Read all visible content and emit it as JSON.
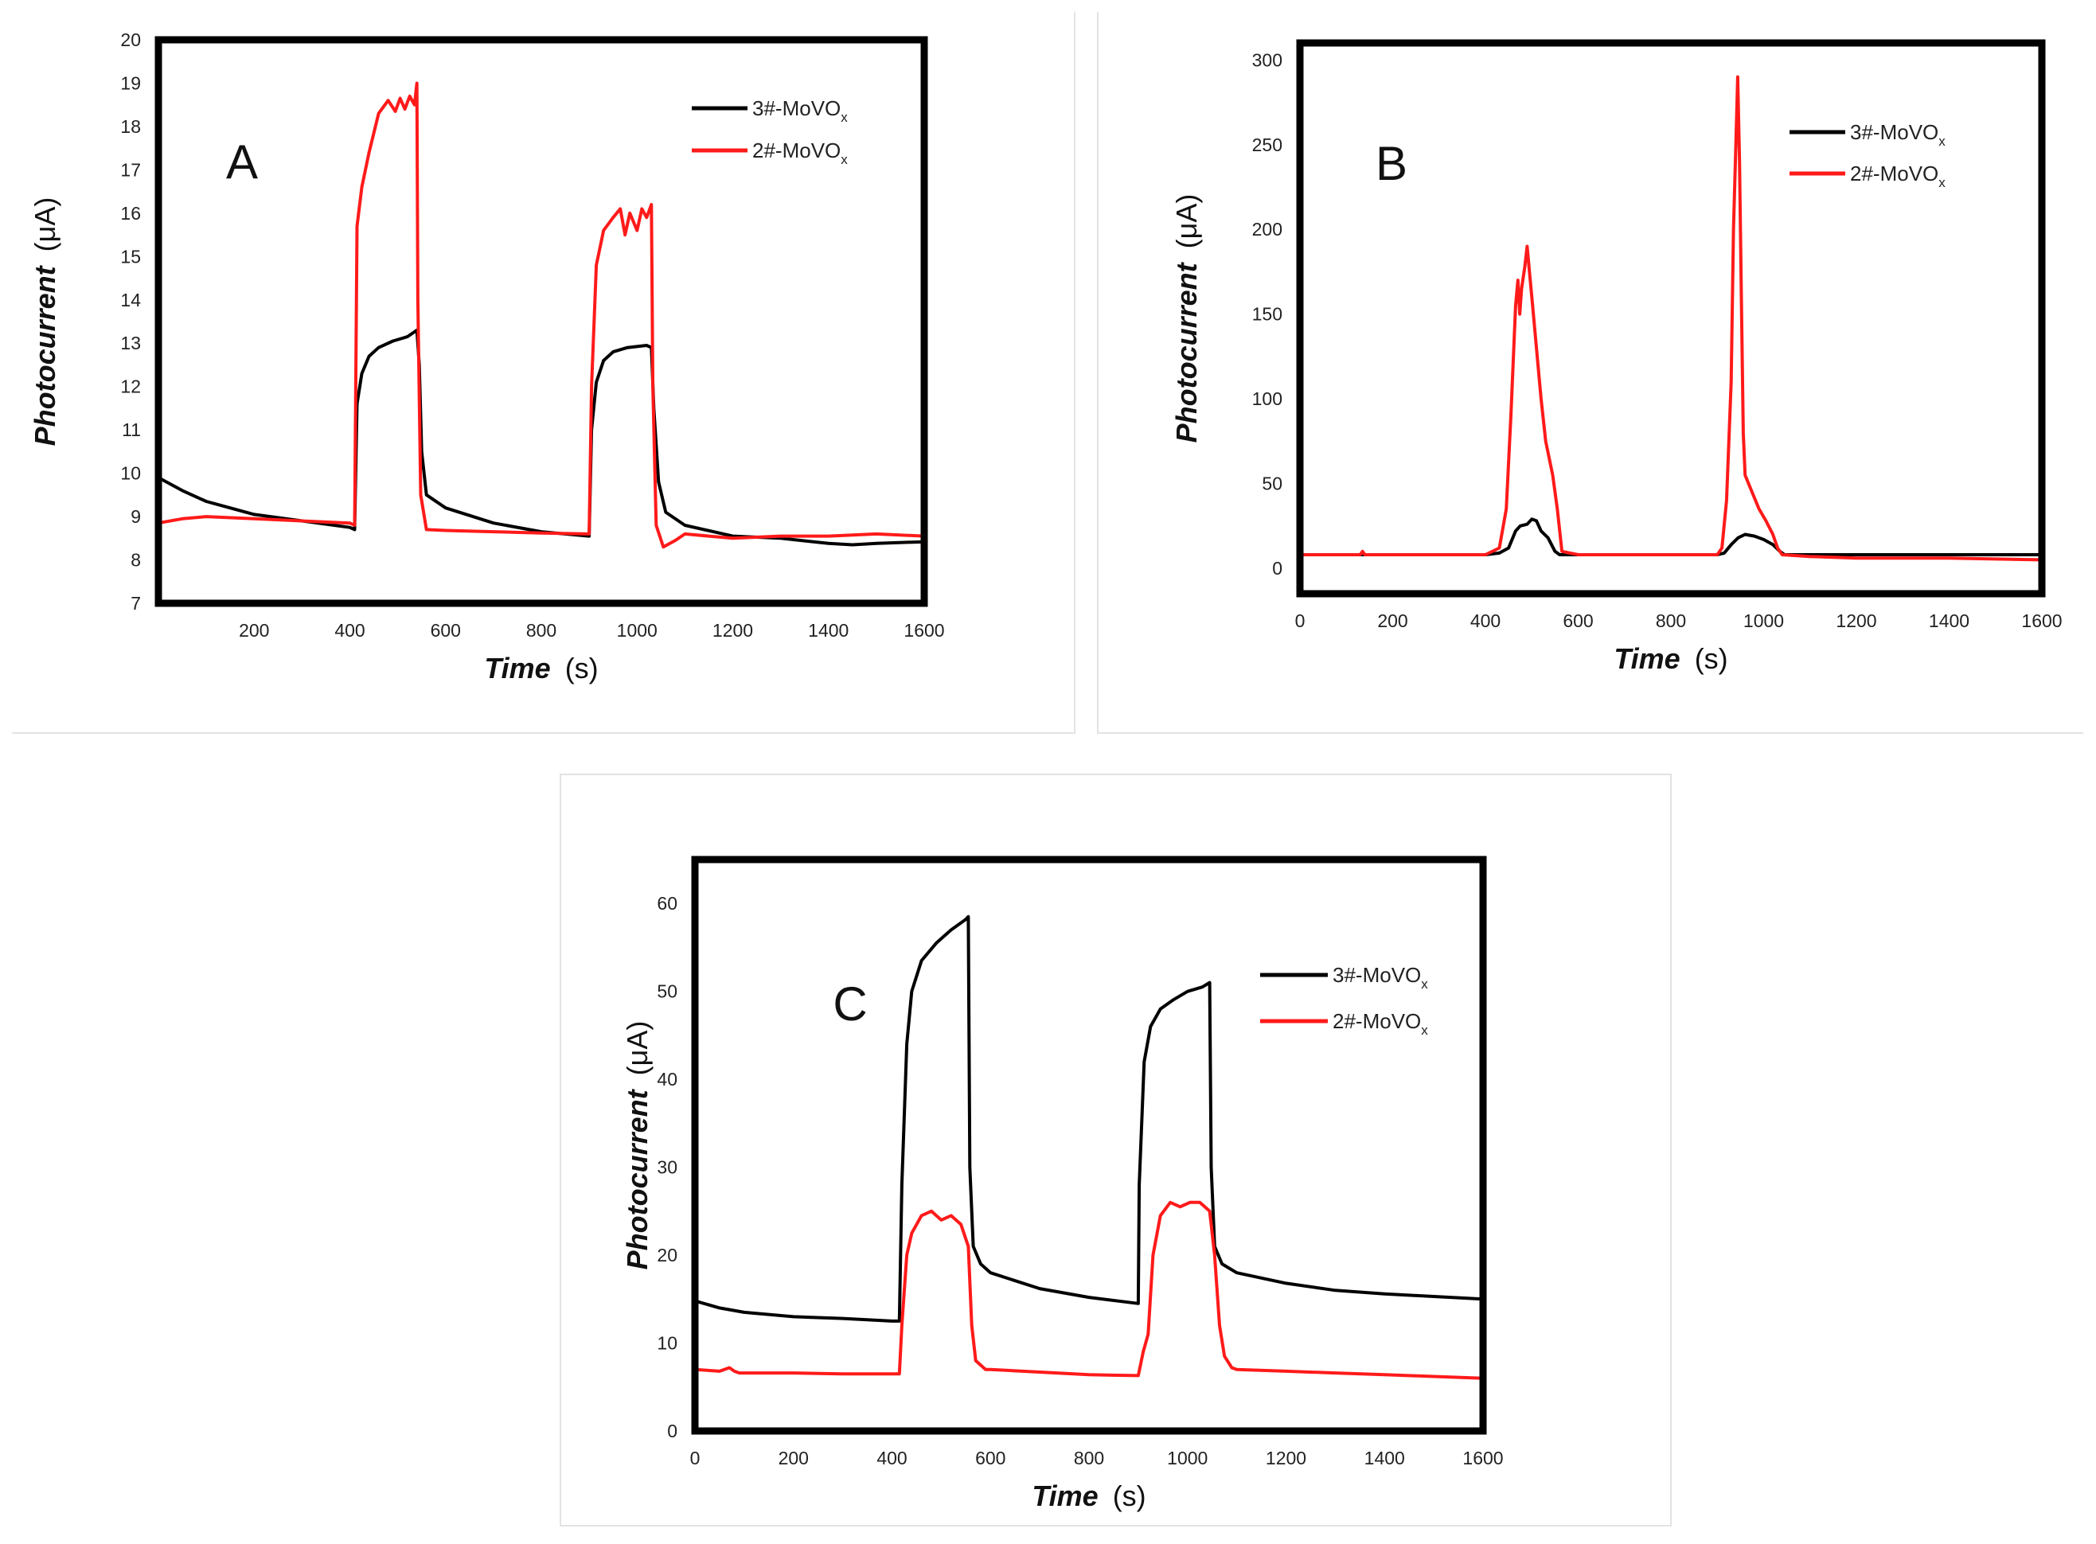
{
  "chart_data": [
    {
      "type": "line",
      "panel_label": "A",
      "xlabel": "Time",
      "xunit": "(s)",
      "ylabel": "Photocurrent",
      "yunit": "(μA)",
      "xlim": [
        0,
        1600
      ],
      "ylim": [
        7,
        20
      ],
      "xticks": [
        200,
        400,
        600,
        800,
        1000,
        1200,
        1400,
        1600
      ],
      "yticks": [
        7,
        8,
        9,
        10,
        11,
        12,
        13,
        14,
        15,
        16,
        17,
        18,
        19,
        20
      ],
      "legend_position": "top-right",
      "series": [
        {
          "name": "3#-MoVOx",
          "label_main": "3#-MoVO",
          "label_sub": "x",
          "color": "#000000",
          "x": [
            0,
            50,
            100,
            200,
            300,
            400,
            410,
            415,
            425,
            440,
            460,
            490,
            520,
            540,
            545,
            550,
            560,
            600,
            700,
            800,
            900,
            905,
            915,
            930,
            950,
            980,
            1020,
            1030,
            1035,
            1045,
            1060,
            1100,
            1200,
            1300,
            1400,
            1450,
            1500,
            1600
          ],
          "values": [
            9.9,
            9.6,
            9.35,
            9.05,
            8.9,
            8.75,
            8.7,
            11.6,
            12.3,
            12.7,
            12.9,
            13.05,
            13.15,
            13.3,
            12.5,
            10.5,
            9.5,
            9.2,
            8.85,
            8.65,
            8.55,
            11.0,
            12.1,
            12.6,
            12.8,
            12.9,
            12.95,
            12.9,
            11.5,
            9.8,
            9.1,
            8.8,
            8.55,
            8.5,
            8.38,
            8.35,
            8.38,
            8.42
          ]
        },
        {
          "name": "2#-MoVOx",
          "label_main": "2#-MoVO",
          "label_sub": "x",
          "color": "#ff1a1a",
          "x": [
            0,
            50,
            100,
            200,
            300,
            400,
            410,
            415,
            425,
            440,
            460,
            480,
            495,
            505,
            515,
            525,
            535,
            540,
            542,
            548,
            560,
            600,
            700,
            800,
            900,
            905,
            915,
            930,
            950,
            965,
            975,
            985,
            1000,
            1010,
            1020,
            1030,
            1033,
            1040,
            1055,
            1080,
            1100,
            1200,
            1300,
            1400,
            1500,
            1600
          ],
          "values": [
            8.85,
            8.95,
            9.0,
            8.95,
            8.9,
            8.85,
            8.8,
            15.7,
            16.6,
            17.4,
            18.3,
            18.6,
            18.35,
            18.65,
            18.4,
            18.7,
            18.5,
            19.0,
            14.0,
            9.5,
            8.7,
            8.68,
            8.65,
            8.62,
            8.6,
            12.0,
            14.8,
            15.6,
            15.9,
            16.1,
            15.5,
            16.0,
            15.6,
            16.1,
            15.9,
            16.2,
            12.0,
            8.8,
            8.3,
            8.45,
            8.6,
            8.5,
            8.55,
            8.55,
            8.6,
            8.55
          ]
        }
      ]
    },
    {
      "type": "line",
      "panel_label": "B",
      "xlabel": "Time",
      "xunit": "(s)",
      "ylabel": "Photocurrent",
      "yunit": "(μA)",
      "xlim": [
        0,
        1600
      ],
      "ylim": [
        -15,
        310
      ],
      "xticks": [
        0,
        200,
        400,
        600,
        800,
        1000,
        1200,
        1400,
        1600
      ],
      "yticks": [
        0,
        50,
        100,
        150,
        200,
        250,
        300
      ],
      "legend_position": "top-right",
      "series": [
        {
          "name": "3#-MoVOx",
          "label_main": "3#-MoVO",
          "label_sub": "x",
          "color": "#000000",
          "x": [
            0,
            100,
            200,
            300,
            400,
            430,
            450,
            465,
            475,
            490,
            500,
            510,
            520,
            535,
            550,
            560,
            600,
            700,
            800,
            900,
            915,
            930,
            945,
            960,
            980,
            1000,
            1020,
            1035,
            1045,
            1100,
            1200,
            1400,
            1600
          ],
          "values": [
            8,
            8,
            8,
            8,
            8,
            9,
            12,
            22,
            25,
            26,
            29,
            28,
            22,
            18,
            10,
            8,
            8,
            8,
            8,
            8,
            9,
            14,
            18,
            20,
            19,
            17,
            14,
            10,
            8,
            8,
            8,
            8,
            8
          ]
        },
        {
          "name": "2#-MoVOx",
          "label_main": "2#-MoVO",
          "label_sub": "x",
          "color": "#ff1a1a",
          "x": [
            0,
            100,
            130,
            135,
            140,
            200,
            300,
            400,
            430,
            445,
            455,
            465,
            470,
            474,
            478,
            485,
            490,
            495,
            500,
            510,
            520,
            530,
            545,
            555,
            565,
            600,
            700,
            800,
            900,
            910,
            920,
            930,
            935,
            940,
            944,
            948,
            952,
            956,
            960,
            975,
            990,
            1005,
            1020,
            1030,
            1040,
            1100,
            1200,
            1400,
            1600
          ],
          "values": [
            8,
            8,
            8,
            10,
            8,
            8,
            8,
            8,
            12,
            35,
            90,
            155,
            170,
            150,
            165,
            178,
            190,
            175,
            160,
            130,
            100,
            75,
            55,
            35,
            10,
            8,
            8,
            8,
            8,
            12,
            40,
            110,
            200,
            250,
            290,
            240,
            160,
            80,
            55,
            45,
            35,
            28,
            20,
            12,
            8,
            7,
            6,
            6,
            5
          ]
        }
      ]
    },
    {
      "type": "line",
      "panel_label": "C",
      "xlabel": "Time",
      "xunit": "(s)",
      "ylabel": "Photocurrent",
      "yunit": "(μA)",
      "xlim": [
        0,
        1600
      ],
      "ylim": [
        0,
        65
      ],
      "xticks": [
        0,
        200,
        400,
        600,
        800,
        1000,
        1200,
        1400,
        1600
      ],
      "yticks": [
        0,
        10,
        20,
        30,
        40,
        50,
        60
      ],
      "legend_position": "top-right",
      "series": [
        {
          "name": "3#-MoVOx",
          "label_main": "3#-MoVO",
          "label_sub": "x",
          "color": "#000000",
          "x": [
            0,
            50,
            100,
            200,
            300,
            400,
            415,
            420,
            430,
            440,
            460,
            490,
            520,
            550,
            555,
            558,
            565,
            580,
            600,
            700,
            800,
            900,
            902,
            912,
            925,
            945,
            970,
            1000,
            1030,
            1045,
            1048,
            1055,
            1070,
            1100,
            1200,
            1300,
            1400,
            1500,
            1600
          ],
          "values": [
            14.8,
            14.0,
            13.5,
            13.0,
            12.8,
            12.5,
            12.5,
            28.0,
            44.0,
            50.0,
            53.5,
            55.5,
            57.0,
            58.2,
            58.5,
            30.0,
            21.0,
            19.0,
            18.0,
            16.2,
            15.2,
            14.5,
            28.0,
            42.0,
            46.0,
            48.0,
            49.0,
            50.0,
            50.5,
            51.0,
            30.0,
            21.0,
            19.0,
            18.0,
            16.8,
            16.0,
            15.6,
            15.3,
            15.0
          ]
        },
        {
          "name": "2#-MoVOx",
          "label_main": "2#-MoVO",
          "label_sub": "x",
          "color": "#ff1a1a",
          "x": [
            0,
            50,
            70,
            80,
            90,
            200,
            300,
            415,
            420,
            430,
            440,
            460,
            480,
            500,
            520,
            540,
            555,
            562,
            570,
            590,
            600,
            700,
            800,
            900,
            910,
            920,
            930,
            945,
            965,
            985,
            1005,
            1025,
            1045,
            1055,
            1065,
            1075,
            1090,
            1100,
            1200,
            1300,
            1400,
            1500,
            1600
          ],
          "values": [
            7.0,
            6.8,
            7.2,
            6.8,
            6.6,
            6.6,
            6.5,
            6.5,
            12.0,
            20.0,
            22.5,
            24.5,
            25.0,
            24.0,
            24.5,
            23.5,
            21.0,
            12.0,
            8.0,
            7.0,
            7.0,
            6.7,
            6.4,
            6.3,
            9.0,
            11.0,
            20.0,
            24.5,
            26.0,
            25.5,
            26.0,
            26.0,
            25.0,
            20.0,
            12.0,
            8.5,
            7.2,
            7.0,
            6.8,
            6.6,
            6.4,
            6.2,
            6.0
          ]
        }
      ]
    }
  ]
}
